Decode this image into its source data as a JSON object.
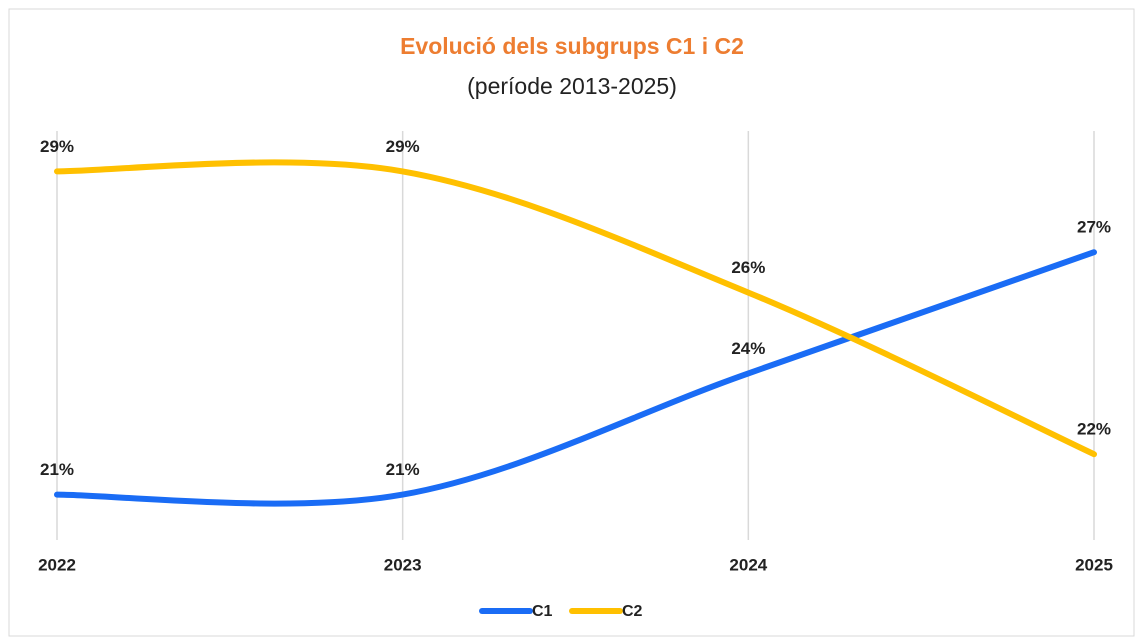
{
  "chart_data": {
    "type": "line",
    "title": "Evolució dels subgrups C1 i C2",
    "subtitle": "(període 2013-2025)",
    "categories": [
      "2022",
      "2023",
      "2024",
      "2025"
    ],
    "series": [
      {
        "name": "C1",
        "color": "#1a6cf5",
        "values": [
          21,
          21,
          24,
          27
        ],
        "value_labels": [
          "21%",
          "21%",
          "24%",
          "27%"
        ]
      },
      {
        "name": "C2",
        "color": "#ffc000",
        "values": [
          29,
          29,
          26,
          22
        ],
        "value_labels": [
          "29%",
          "29%",
          "26%",
          "22%"
        ]
      }
    ],
    "ylim": [
      20,
      30
    ],
    "smooth": true,
    "grid": true,
    "legend": "bottom"
  }
}
